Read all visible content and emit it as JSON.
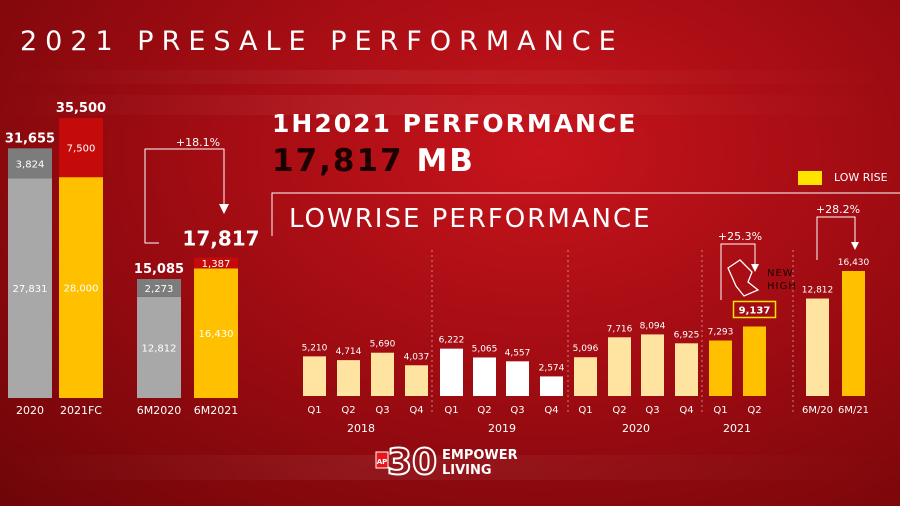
{
  "page": {
    "title": "2021 PRESALE PERFORMANCE",
    "headline_line1": "1H2021 PERFORMANCE",
    "headline_value": "17,817",
    "headline_unit": "MB",
    "panel_title": "LOWRISE PERFORMANCE",
    "legend_label": "LOW RISE",
    "logo_text_1": "EMPOWER",
    "logo_text_2": "LIVING",
    "logo_badge": "AP",
    "logo_number": "30"
  },
  "colors": {
    "gray": "#a8a8a8",
    "dark_gray": "#7c7c7c",
    "red": "#c50a0a",
    "gold": "#ffc000",
    "pale": "#ffe3a0",
    "white": "#ffffff",
    "highlight_border": "#ffe400"
  },
  "chart_data": [
    {
      "type": "bar",
      "stacked": true,
      "categories": [
        "2020",
        "2021FC",
        "6M2020",
        "6M2021"
      ],
      "series": [
        {
          "values": [
            27831,
            28000,
            12812,
            16430
          ]
        },
        {
          "values": [
            3824,
            7500,
            2273,
            1387
          ]
        }
      ],
      "labels_bottom": [
        "27,831",
        "28,000",
        "12,812",
        "16,430"
      ],
      "labels_top": [
        "3,824",
        "7,500",
        "2,273",
        "1,387"
      ],
      "totals": [
        "31,655",
        "35,500",
        "15,085",
        "17,817"
      ],
      "annotation": "+18.1%"
    },
    {
      "type": "bar",
      "categories": [
        "Q1",
        "Q2",
        "Q3",
        "Q4",
        "Q1",
        "Q2",
        "Q3",
        "Q4",
        "Q1",
        "Q2",
        "Q3",
        "Q4",
        "Q1",
        "Q2",
        "6M/20",
        "6M/21"
      ],
      "values": [
        5210,
        4714,
        5690,
        4037,
        6222,
        5065,
        4557,
        2574,
        5096,
        7716,
        8094,
        6925,
        7293,
        9137,
        12812,
        16430
      ],
      "value_labels": [
        "5,210",
        "4,714",
        "5,690",
        "4,037",
        "6,222",
        "5,065",
        "4,557",
        "2,574",
        "5,096",
        "7,716",
        "8,094",
        "6,925",
        "7,293",
        "9,137",
        "12,812",
        "16,430"
      ],
      "groups": [
        "2018",
        "2019",
        "2020",
        "2021"
      ],
      "legend": [
        "LOW RISE"
      ],
      "annotations": [
        "+25.3%",
        "+28.2%",
        "NEW",
        "HIGH"
      ]
    }
  ]
}
